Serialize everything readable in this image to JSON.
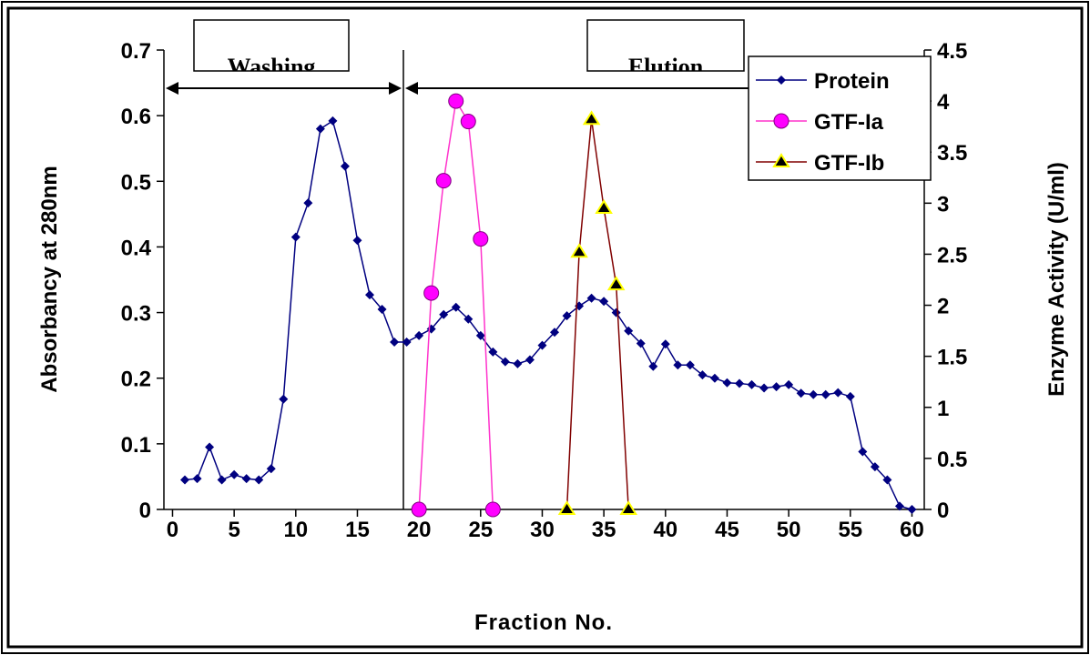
{
  "chart_data": {
    "type": "line",
    "x_label": "Fraction  No.",
    "y_label": "Absorbancy at 280nm",
    "y2_label": "Enzyme Activity (U/ml)",
    "annotations": [
      "Washing",
      "Elution"
    ],
    "xlim": [
      -0.7,
      61
    ],
    "xticks": [
      0,
      5,
      10,
      15,
      20,
      25,
      30,
      35,
      40,
      45,
      50,
      55,
      60
    ],
    "ylim": [
      0,
      0.7
    ],
    "yticks": [
      0,
      0.1,
      0.2,
      0.3,
      0.4,
      0.5,
      0.6,
      0.7
    ],
    "y2lim": [
      0,
      4.5
    ],
    "y2ticks": [
      0,
      0.5,
      1,
      1.5,
      2,
      2.5,
      3,
      3.5,
      4,
      4.5
    ],
    "legend": "top-right",
    "series": [
      {
        "name": "Protein",
        "color": "#000080",
        "marker": "diamond",
        "marker_color": "#000080",
        "axis": "y",
        "x": [
          1,
          2,
          3,
          4,
          5,
          6,
          7,
          8,
          9,
          10,
          11,
          12,
          13,
          14,
          15,
          16,
          17,
          18,
          19,
          20,
          21,
          22,
          23,
          24,
          25,
          26,
          27,
          28,
          29,
          30,
          31,
          32,
          33,
          34,
          35,
          36,
          37,
          38,
          39,
          40,
          41,
          42,
          43,
          44,
          45,
          46,
          47,
          48,
          49,
          50,
          51,
          52,
          53,
          54,
          55,
          56,
          57,
          58,
          59,
          60
        ],
        "values": [
          0.045,
          0.047,
          0.095,
          0.045,
          0.053,
          0.047,
          0.045,
          0.062,
          0.168,
          0.415,
          0.467,
          0.58,
          0.592,
          0.523,
          0.41,
          0.327,
          0.305,
          0.255,
          0.255,
          0.265,
          0.275,
          0.297,
          0.308,
          0.29,
          0.265,
          0.24,
          0.225,
          0.222,
          0.228,
          0.25,
          0.27,
          0.295,
          0.31,
          0.322,
          0.317,
          0.3,
          0.272,
          0.253,
          0.218,
          0.252,
          0.22,
          0.22,
          0.205,
          0.2,
          0.193,
          0.192,
          0.19,
          0.185,
          0.187,
          0.19,
          0.177,
          0.175,
          0.175,
          0.178,
          0.172,
          0.088,
          0.065,
          0.045,
          0.005,
          0
        ]
      },
      {
        "name": "GTF-Ia",
        "color": "#ff33cc",
        "marker": "circle",
        "marker_color": "#ff00ff",
        "axis": "y2",
        "x": [
          20,
          21,
          22,
          23,
          24,
          25,
          26
        ],
        "values": [
          0,
          2.12,
          3.22,
          4.0,
          3.8,
          2.65,
          0
        ]
      },
      {
        "name": "GTF-Ib",
        "color": "#800000",
        "marker": "triangle",
        "marker_color": "#000000",
        "axis": "y2",
        "x": [
          32,
          33,
          34,
          35,
          36,
          37
        ],
        "values": [
          0,
          2.52,
          3.82,
          2.95,
          2.2,
          0
        ]
      }
    ]
  }
}
